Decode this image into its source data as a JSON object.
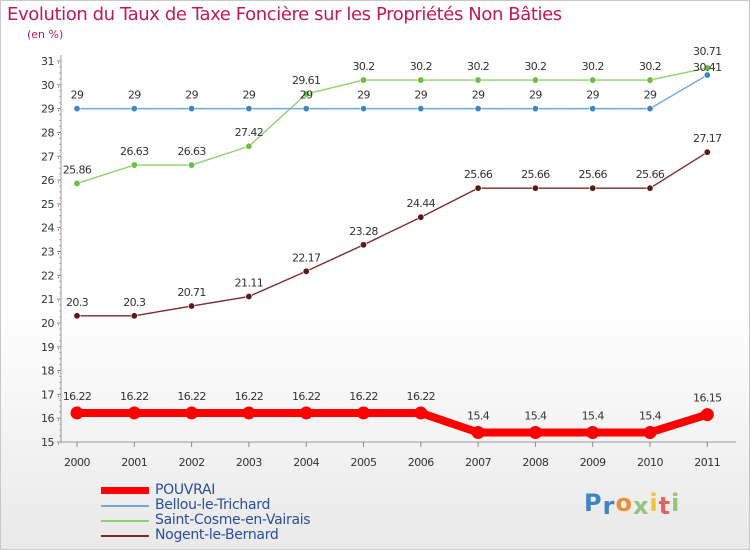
{
  "chart_data": {
    "type": "line",
    "title": "Evolution du Taux de Taxe Foncière sur les Propriétés Non Bâties",
    "ylabel": "(en %)",
    "xlabel": "",
    "categories": [
      "2000",
      "2001",
      "2002",
      "2003",
      "2004",
      "2005",
      "2006",
      "2007",
      "2008",
      "2009",
      "2010",
      "2011"
    ],
    "ylim": [
      15,
      31
    ],
    "yticks": [
      "15",
      "16",
      "17",
      "18",
      "19",
      "20",
      "21",
      "22",
      "23",
      "24",
      "25",
      "26",
      "27",
      "28",
      "29",
      "30",
      "31"
    ],
    "grid": false,
    "legend_position": "bottom-left",
    "series": [
      {
        "name": "POUVRAI",
        "color": "#ff0000",
        "values": [
          16.22,
          16.22,
          16.22,
          16.22,
          16.22,
          16.22,
          16.22,
          15.4,
          15.4,
          15.4,
          15.4,
          16.15
        ],
        "labels": [
          "16.22",
          "16.22",
          "16.22",
          "16.22",
          "16.22",
          "16.22",
          "16.22",
          "15.4",
          "15.4",
          "15.4",
          "15.4",
          "16.15"
        ]
      },
      {
        "name": "Bellou-le-Trichard",
        "color": "#6fa8dc",
        "marker": "#3d85c6",
        "values": [
          29,
          29,
          29,
          29,
          29,
          29,
          29,
          29,
          29,
          29,
          29,
          30.41
        ],
        "labels": [
          "29",
          "29",
          "29",
          "29",
          "29",
          "29",
          "29",
          "29",
          "29",
          "29",
          "29",
          "30.41"
        ]
      },
      {
        "name": "Saint-Cosme-en-Vairais",
        "color": "#8fd16a",
        "marker": "#6abf3f",
        "values": [
          25.86,
          26.63,
          26.63,
          27.42,
          29.61,
          30.2,
          30.2,
          30.2,
          30.2,
          30.2,
          30.2,
          30.71
        ],
        "labels": [
          "25.86",
          "26.63",
          "26.63",
          "27.42",
          "29.61",
          "30.2",
          "30.2",
          "30.2",
          "30.2",
          "30.2",
          "30.2",
          "30.71"
        ]
      },
      {
        "name": "Nogent-le-Bernard",
        "color": "#7b2b2b",
        "marker": "#5a1a1a",
        "values": [
          20.3,
          20.3,
          20.71,
          21.11,
          22.17,
          23.28,
          24.44,
          25.66,
          25.66,
          25.66,
          25.66,
          27.17
        ],
        "labels": [
          "20.3",
          "20.3",
          "20.71",
          "21.11",
          "22.17",
          "23.28",
          "24.44",
          "25.66",
          "25.66",
          "25.66",
          "25.66",
          "27.17"
        ]
      }
    ]
  },
  "brand": {
    "letters": [
      "P",
      "r",
      "o",
      "x",
      "i",
      "t",
      "i"
    ],
    "colors": [
      "#3d85c6",
      "#3d85c6",
      "#e69138",
      "#93c47d",
      "#f1c232",
      "#e06666",
      "#93c47d"
    ]
  }
}
